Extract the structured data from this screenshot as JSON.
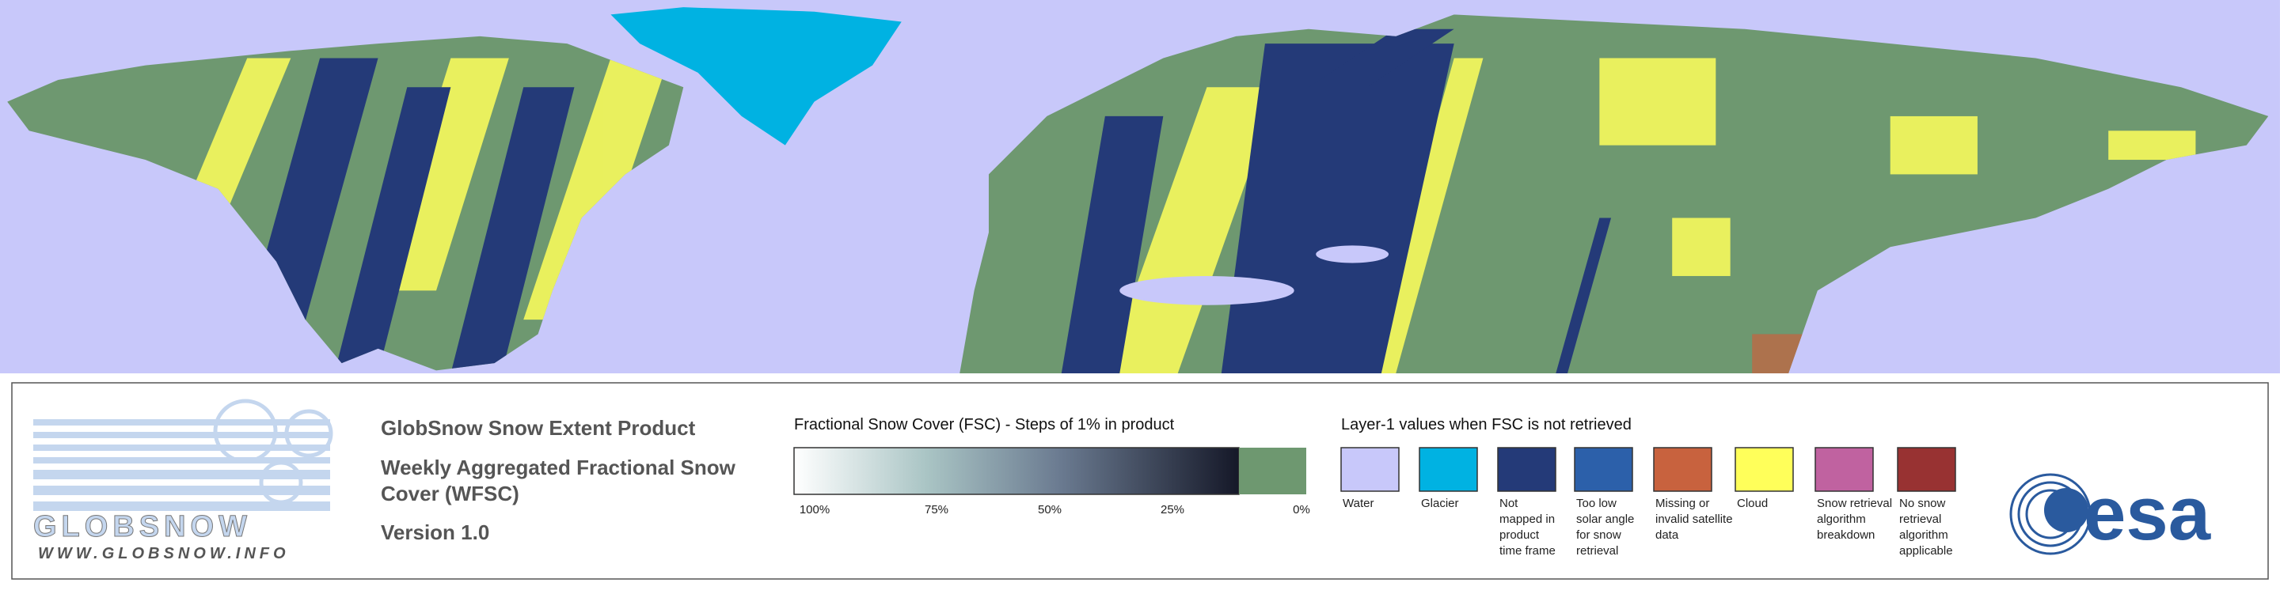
{
  "logo": {
    "wordmark": "GLOBSNOW",
    "url": "WWW.GLOBSNOW.INFO"
  },
  "product": {
    "title": "GlobSnow Snow Extent Product",
    "subtitle_lines": [
      "Weekly Aggregated Fractional Snow",
      "Cover (WFSC)"
    ],
    "version": "Version 1.0"
  },
  "fsc_legend": {
    "title": "Fractional Snow Cover (FSC) - Steps of 1% in product",
    "ticks": [
      "100%",
      "75%",
      "50%",
      "25%",
      "0%"
    ]
  },
  "layer1_legend": {
    "title": "Layer-1 values when FSC is not retrieved",
    "items": [
      {
        "label_lines": [
          "Water"
        ],
        "color": "#c8c8fa"
      },
      {
        "label_lines": [
          "Glacier"
        ],
        "color": "#00b2e2"
      },
      {
        "label_lines": [
          "Not",
          "mapped in",
          "product",
          "time frame"
        ],
        "color": "#243a78"
      },
      {
        "label_lines": [
          "Too low",
          "solar angle",
          "for snow",
          "retrieval"
        ],
        "color": "#2c60aa"
      },
      {
        "label_lines": [
          "Missing or",
          "invalid satellite",
          "data"
        ],
        "color": "#c8623e"
      },
      {
        "label_lines": [
          "Cloud"
        ],
        "color": "#ffff5a"
      },
      {
        "label_lines": [
          "Snow retrieval",
          "algorithm",
          "breakdown"
        ],
        "color": "#c062a0"
      },
      {
        "label_lines": [
          "No snow",
          "retrieval",
          "algorithm",
          "applicable"
        ],
        "color": "#983232"
      }
    ]
  },
  "esa_logo": "esa"
}
